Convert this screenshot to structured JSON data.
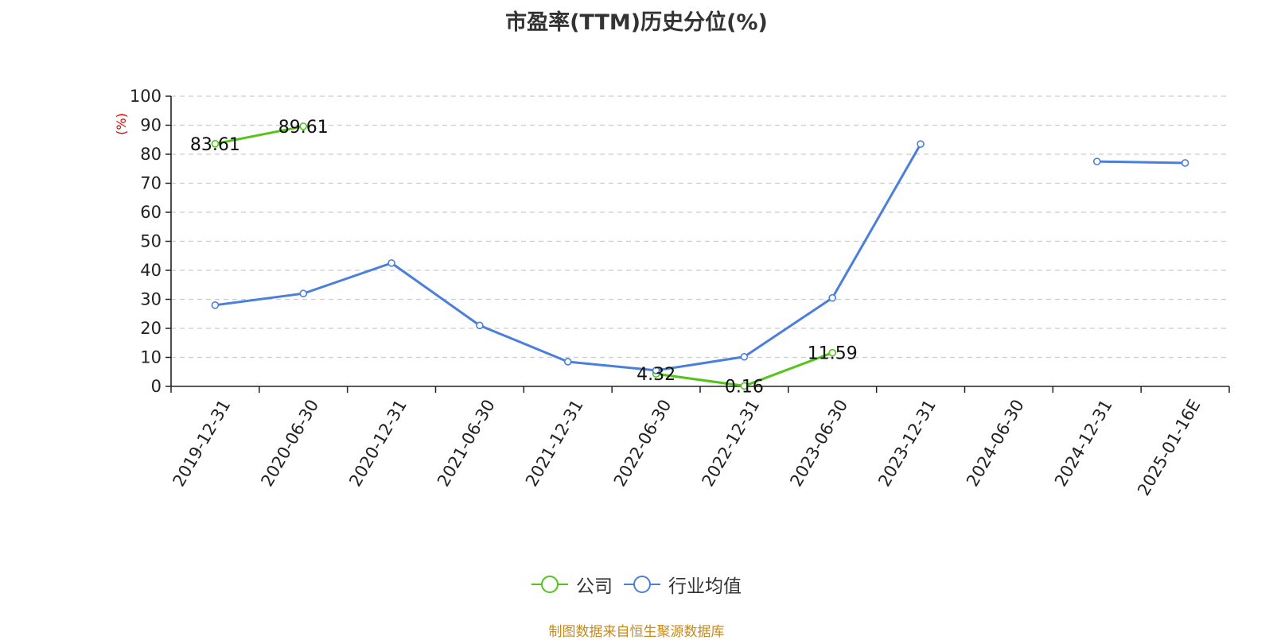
{
  "title": "市盈率(TTM)历史分位(%)",
  "source": "制图数据来自恒生聚源数据库",
  "colors": {
    "company": "#52c41a",
    "industry": "#4a7fdc"
  },
  "chart_data": {
    "type": "line",
    "unit_label": "(%)",
    "ylim": [
      0,
      100
    ],
    "yticks": [
      0,
      10,
      20,
      30,
      40,
      50,
      60,
      70,
      80,
      90,
      100
    ],
    "grid": true,
    "legend_position": "bottom-center",
    "categories": [
      "2019-12-31",
      "2020-06-30",
      "2020-12-31",
      "2021-06-30",
      "2021-12-31",
      "2022-06-30",
      "2022-12-31",
      "2023-06-30",
      "2023-12-31",
      "2024-06-30",
      "2024-12-31",
      "2025-01-16E"
    ],
    "series": [
      {
        "name": "公司",
        "key": "company",
        "values": [
          83.61,
          89.61,
          null,
          null,
          null,
          4.32,
          0.16,
          11.59,
          null,
          null,
          null,
          null
        ],
        "labels": [
          "83.61",
          "89.61",
          null,
          null,
          null,
          "4.32",
          "0.16",
          "11.59",
          null,
          null,
          null,
          null
        ]
      },
      {
        "name": "行业均值",
        "key": "industry",
        "values": [
          28.0,
          32.0,
          42.5,
          21.0,
          8.5,
          5.5,
          10.2,
          30.5,
          83.5,
          null,
          77.5,
          77.0
        ],
        "labels": null
      }
    ]
  }
}
